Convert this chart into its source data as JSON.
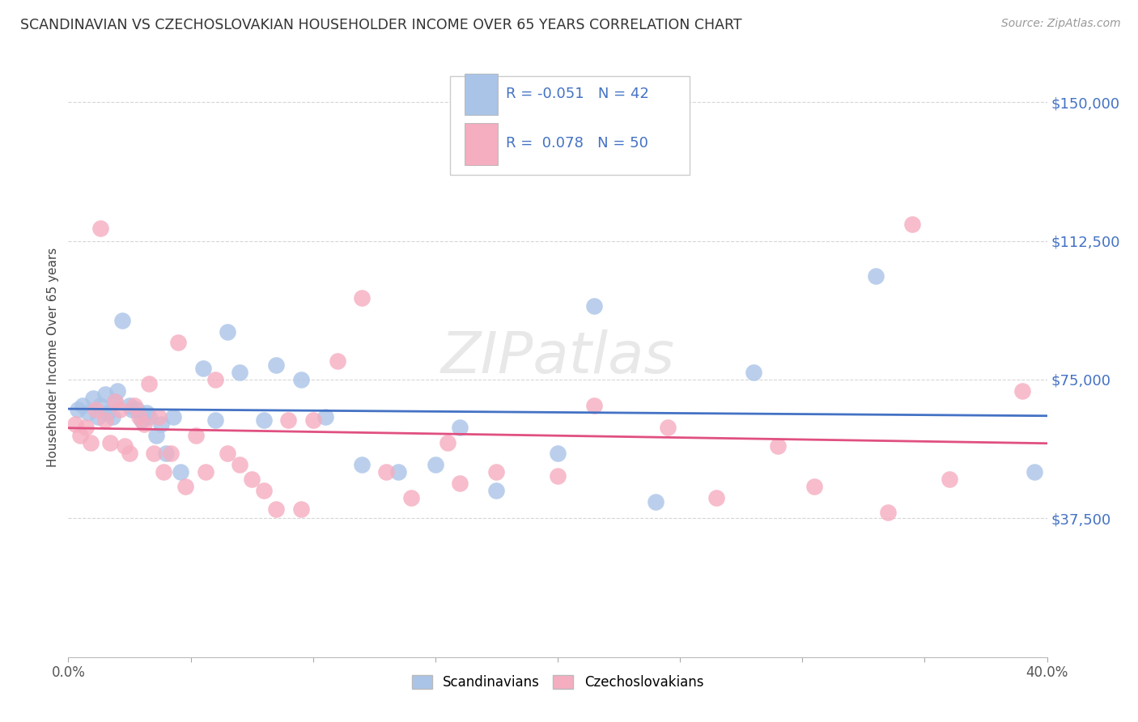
{
  "title": "SCANDINAVIAN VS CZECHOSLOVAKIAN HOUSEHOLDER INCOME OVER 65 YEARS CORRELATION CHART",
  "source": "Source: ZipAtlas.com",
  "ylabel": "Householder Income Over 65 years",
  "xlim": [
    0.0,
    0.4
  ],
  "ylim": [
    0,
    162000
  ],
  "ytick_vals": [
    37500,
    75000,
    112500,
    150000
  ],
  "ytick_labels": [
    "$37,500",
    "$75,000",
    "$112,500",
    "$150,000"
  ],
  "xtick_positions": [
    0.0,
    0.05,
    0.1,
    0.15,
    0.2,
    0.25,
    0.3,
    0.35,
    0.4
  ],
  "xtick_labels": [
    "0.0%",
    "",
    "",
    "",
    "",
    "",
    "",
    "",
    "40.0%"
  ],
  "legend_labels": [
    "Scandinavians",
    "Czechoslovakians"
  ],
  "blue_color": "#aac4e8",
  "pink_color": "#f5adc0",
  "blue_line_color": "#4472c4",
  "pink_line_color": "#e05080",
  "blue_R": -0.051,
  "blue_N": 42,
  "pink_R": 0.078,
  "pink_N": 50,
  "blue_scatter_x": [
    0.004,
    0.006,
    0.008,
    0.01,
    0.012,
    0.013,
    0.015,
    0.016,
    0.018,
    0.019,
    0.02,
    0.022,
    0.025,
    0.026,
    0.028,
    0.03,
    0.032,
    0.033,
    0.036,
    0.038,
    0.04,
    0.043,
    0.046,
    0.055,
    0.06,
    0.065,
    0.07,
    0.08,
    0.085,
    0.095,
    0.105,
    0.12,
    0.135,
    0.15,
    0.16,
    0.175,
    0.2,
    0.215,
    0.24,
    0.28,
    0.33,
    0.395
  ],
  "blue_scatter_y": [
    67000,
    68000,
    66000,
    70000,
    65000,
    68000,
    71000,
    66000,
    65000,
    69000,
    72000,
    91000,
    68000,
    67000,
    67000,
    64000,
    66000,
    65000,
    60000,
    63000,
    55000,
    65000,
    50000,
    78000,
    64000,
    88000,
    77000,
    64000,
    79000,
    75000,
    65000,
    52000,
    50000,
    52000,
    62000,
    45000,
    55000,
    95000,
    42000,
    77000,
    103000,
    50000
  ],
  "pink_scatter_x": [
    0.003,
    0.005,
    0.007,
    0.009,
    0.011,
    0.013,
    0.015,
    0.017,
    0.019,
    0.021,
    0.023,
    0.025,
    0.027,
    0.029,
    0.031,
    0.033,
    0.035,
    0.037,
    0.039,
    0.042,
    0.045,
    0.048,
    0.052,
    0.056,
    0.06,
    0.065,
    0.07,
    0.075,
    0.08,
    0.085,
    0.09,
    0.095,
    0.1,
    0.11,
    0.12,
    0.13,
    0.14,
    0.155,
    0.16,
    0.175,
    0.2,
    0.215,
    0.245,
    0.265,
    0.29,
    0.305,
    0.335,
    0.345,
    0.36,
    0.39
  ],
  "pink_scatter_y": [
    63000,
    60000,
    62000,
    58000,
    67000,
    116000,
    64000,
    58000,
    69000,
    67000,
    57000,
    55000,
    68000,
    65000,
    63000,
    74000,
    55000,
    65000,
    50000,
    55000,
    85000,
    46000,
    60000,
    50000,
    75000,
    55000,
    52000,
    48000,
    45000,
    40000,
    64000,
    40000,
    64000,
    80000,
    97000,
    50000,
    43000,
    58000,
    47000,
    50000,
    49000,
    68000,
    62000,
    43000,
    57000,
    46000,
    39000,
    117000,
    48000,
    72000
  ],
  "watermark_text": "ZIPatlas",
  "background_color": "#ffffff",
  "grid_color": "#cccccc"
}
